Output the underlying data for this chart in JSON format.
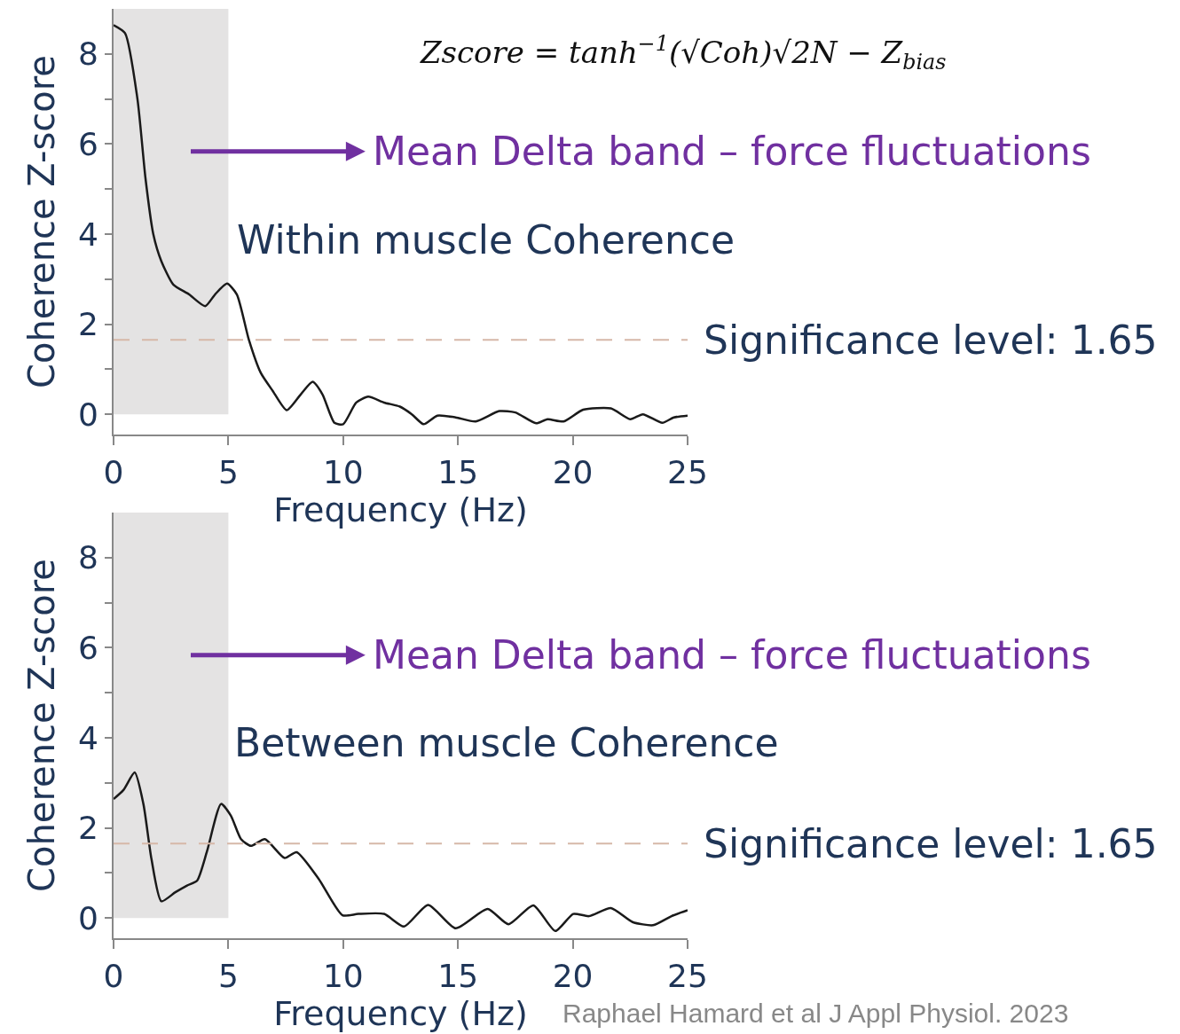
{
  "chart_data": [
    {
      "type": "line",
      "xlabel": "Frequency (Hz)",
      "ylabel": "Coherence Z-score",
      "xlim": [
        0,
        25
      ],
      "ylim": [
        -0.45,
        9
      ],
      "xticks": [
        0,
        5,
        10,
        15,
        20,
        25
      ],
      "yticks": [
        0,
        {
          "value": 1,
          "label": null
        },
        2,
        {
          "value": 3,
          "label": null
        },
        4,
        {
          "value": 5,
          "label": null
        },
        6,
        {
          "value": 7,
          "label": null
        },
        8
      ],
      "grid": false,
      "line_style": "solid",
      "marker": "none",
      "series": [
        {
          "color": "#1a1a1a",
          "x": [
            0,
            0.5,
            1.04,
            1.39,
            1.73,
            2.08,
            2.6,
            3.29,
            3.99,
            4.42,
            4.94,
            5.37,
            5.89,
            6.41,
            6.93,
            7.54,
            8.15,
            8.67,
            9.1,
            9.62,
            10,
            10.57,
            11.09,
            11.78,
            12.47,
            12.99,
            13.5,
            14.1,
            14.9,
            15.77,
            16.8,
            17.5,
            18.4,
            18.9,
            19.6,
            20.45,
            21.66,
            22.5,
            23.05,
            23.9,
            24.4,
            25
          ],
          "values": [
            8.64,
            8.46,
            7.0,
            5.24,
            4.0,
            3.4,
            2.88,
            2.66,
            2.4,
            2.66,
            2.9,
            2.66,
            1.66,
            0.92,
            0.52,
            0.09,
            0.44,
            0.72,
            0.44,
            -0.19,
            -0.22,
            0.26,
            0.39,
            0.26,
            0.17,
            0,
            -0.22,
            -0.03,
            -0.07,
            -0.16,
            0.07,
            0.04,
            -0.2,
            -0.11,
            -0.16,
            0.1,
            0.13,
            -0.11,
            0,
            -0.19,
            -0.07,
            -0.03
          ]
        }
      ],
      "bands": [
        {
          "axis": "x",
          "from": 0,
          "to": 5,
          "color": "#e4e3e3"
        }
      ],
      "ref_lines": [
        {
          "axis": "y",
          "value": 1.65,
          "label": "Significance level: 1.65",
          "color": "#d6b8a8",
          "line_style": "dashed"
        }
      ],
      "annotations": [
        "Zscore = tanh$^{−1}$(√Coh)√2N − Z$_{bias}$",
        "Mean Delta band – force fluctuations",
        "Within muscle Coherence"
      ]
    },
    {
      "type": "line",
      "xlabel": "Frequency (Hz)",
      "ylabel": "Coherence Z-score",
      "xlim": [
        0,
        25
      ],
      "ylim": [
        -0.45,
        9
      ],
      "xticks": [
        0,
        5,
        10,
        15,
        20,
        25
      ],
      "yticks": [
        0,
        {
          "value": 1,
          "label": null
        },
        2,
        {
          "value": 3,
          "label": null
        },
        4,
        {
          "value": 5,
          "label": null
        },
        6,
        {
          "value": 7,
          "label": null
        },
        8
      ],
      "grid": false,
      "line_style": "solid",
      "marker": "none",
      "series": [
        {
          "color": "#1a1a1a",
          "x": [
            0,
            0.43,
            0.92,
            1.3,
            1.65,
            2.08,
            2.69,
            3.2,
            3.64,
            4.07,
            4.68,
            5.11,
            5.55,
            5.98,
            6.59,
            7.45,
            7.97,
            8.93,
            9.97,
            10.66,
            11.78,
            12.65,
            13.7,
            14.9,
            16.29,
            17.2,
            18.28,
            19.24,
            20.02,
            20.7,
            21.66,
            22.6,
            23.5,
            24.3,
            25
          ],
          "values": [
            2.64,
            2.84,
            3.23,
            2.53,
            1.31,
            0.37,
            0.57,
            0.72,
            0.83,
            1.48,
            2.53,
            2.27,
            1.75,
            1.6,
            1.75,
            1.33,
            1.46,
            0.87,
            0.06,
            0.09,
            0.09,
            -0.19,
            0.29,
            -0.23,
            0.2,
            -0.14,
            0.28,
            -0.29,
            0.09,
            0.04,
            0.22,
            -0.09,
            -0.16,
            0.04,
            0.17
          ]
        }
      ],
      "bands": [
        {
          "axis": "x",
          "from": 0,
          "to": 5,
          "color": "#e4e3e3"
        }
      ],
      "ref_lines": [
        {
          "axis": "y",
          "value": 1.65,
          "label": "Significance level: 1.65",
          "color": "#d6b8a8",
          "line_style": "dashed"
        }
      ],
      "annotations": [
        "Mean Delta band – force fluctuations",
        "Between muscle Coherence",
        "Raphael Hamard et al J Appl Physiol. 2023"
      ]
    }
  ]
}
